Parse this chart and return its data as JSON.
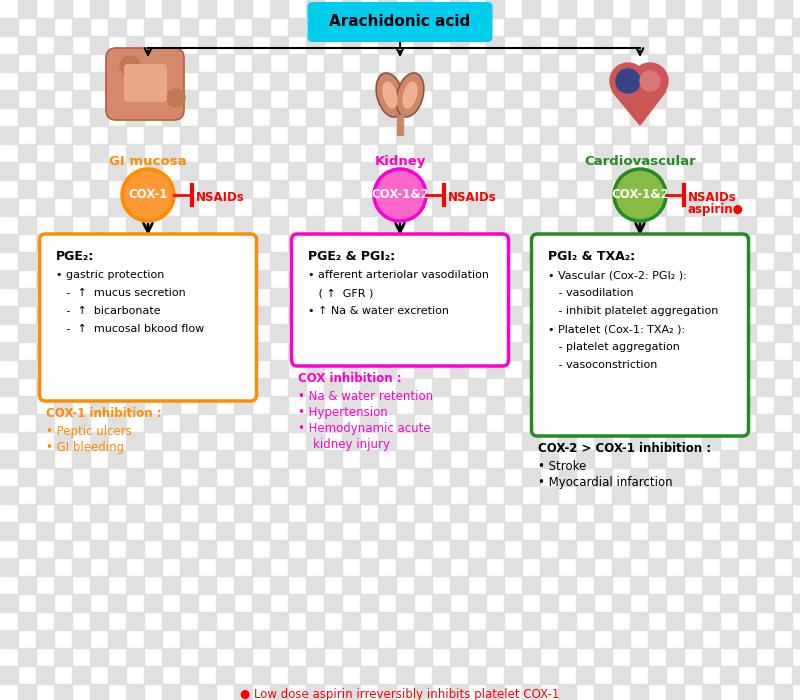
{
  "title": "Arachidonic acid",
  "title_bg": "#00CCEE",
  "columns": [
    {
      "label": "GI mucosa",
      "label_color": "#FF8C00",
      "cox_label": "COX-1",
      "cox_face": "#FF9933",
      "cox_edge": "#FF8C00",
      "box_edge": "#FF8C00",
      "box_title": "PGE₂:",
      "box_lines": [
        "• gastric protection",
        "   -  ↑  mucus secretion",
        "   -  ↑  bicarbonate",
        "   -  ↑  mucosal bkood flow"
      ],
      "inhibition_title": "COX-1 inhibition :",
      "inhibition_color": "#FF8C00",
      "inhibition_lines": [
        "• Peptic ulcers",
        "• GI bleeding"
      ],
      "inhibition_line_color": "#FF8C00",
      "nsaids_extra": ""
    },
    {
      "label": "Kidney",
      "label_color": "#FF00CC",
      "cox_label": "COX-1&2",
      "cox_face": "#FF66CC",
      "cox_edge": "#FF00CC",
      "box_edge": "#FF00CC",
      "box_title": "PGE₂ & PGI₂:",
      "box_lines": [
        "• afferent arteriolar vasodilation",
        "   ( ↑  GFR )",
        "• ↑ Na & water excretion"
      ],
      "inhibition_title": "COX inhibition :",
      "inhibition_color": "#FF00CC",
      "inhibition_lines": [
        "• Na & water retention",
        "• Hypertension",
        "• Hemodynamic acute",
        "    kidney injury"
      ],
      "inhibition_line_color": "#FF00CC",
      "nsaids_extra": ""
    },
    {
      "label": "Cardiovascular",
      "label_color": "#228B22",
      "cox_label": "COX-1&2",
      "cox_face": "#88BB44",
      "cox_edge": "#228B22",
      "box_edge": "#228B22",
      "box_title": "PGI₂ & TXA₂:",
      "box_lines": [
        "• Vascular (Cox-2: PGI₂ ):",
        "   - vasodilation",
        "   - inhibit platelet aggregation",
        "• Platelet (Cox-1: TXA₂ ):",
        "   - platelet aggregation",
        "   - vasoconstriction"
      ],
      "inhibition_title": "COX-2 > COX-1 inhibition :",
      "inhibition_color": "#000000",
      "inhibition_lines": [
        "• Stroke",
        "• Myocardial infarction"
      ],
      "inhibition_line_color": "#000000",
      "nsaids_extra": "aspirin●"
    }
  ],
  "footnote": "● Low dose aspirin irreversibly inhibits platelet COX-1",
  "footnote_color": "#FF0000"
}
